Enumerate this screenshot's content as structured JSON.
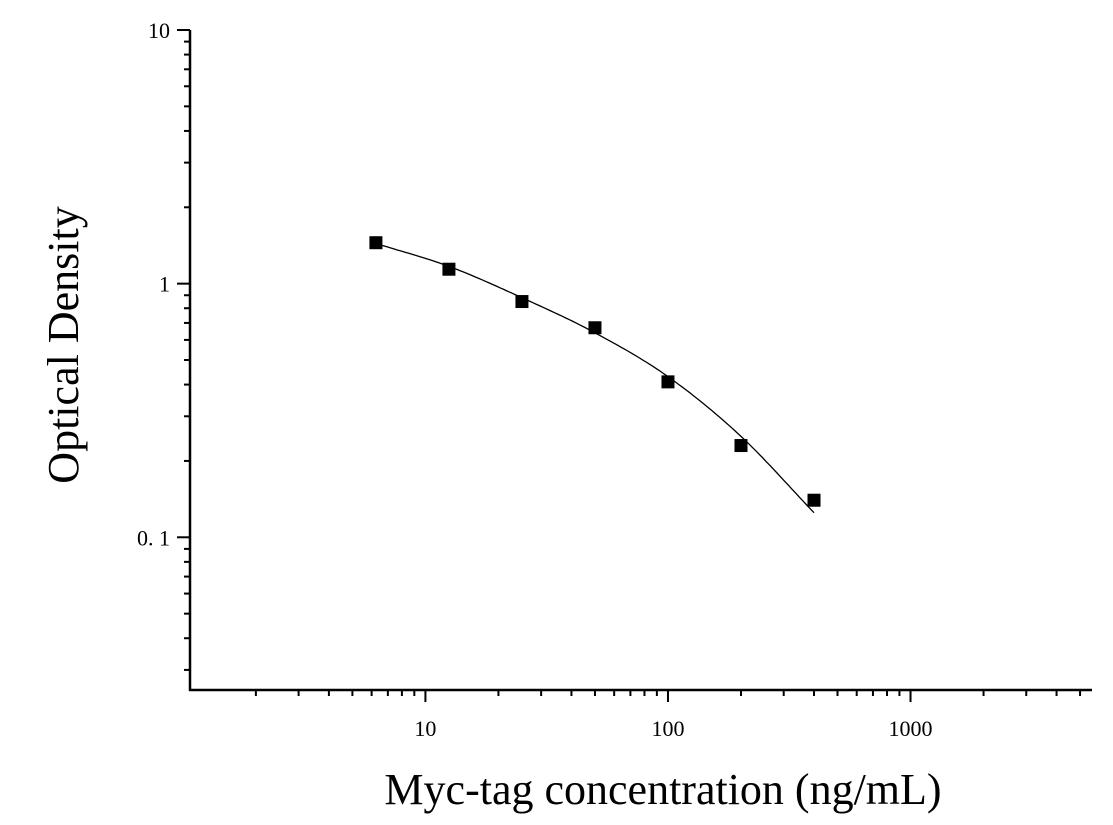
{
  "chart_data": {
    "type": "scatter",
    "xlabel": "Myc-tag concentration (ng/mL)",
    "ylabel": "Optical Density",
    "x_scale": "log",
    "y_scale": "log",
    "xlim": [
      1.07,
      5600
    ],
    "ylim": [
      0.025,
      10
    ],
    "x_ticks": [
      10,
      100,
      1000
    ],
    "x_tick_labels": [
      "10",
      "100",
      "1000"
    ],
    "y_ticks": [
      10,
      1,
      0.1
    ],
    "y_tick_labels": [
      "10",
      "1",
      "0. 1"
    ],
    "grid": false,
    "legend": "none",
    "series": [
      {
        "marker": "square",
        "color": "#000000",
        "x": [
          6.25,
          12.5,
          25,
          50,
          100,
          200,
          400
        ],
        "y": [
          1.45,
          1.14,
          0.85,
          0.67,
          0.41,
          0.23,
          0.14
        ]
      }
    ],
    "fit_curve": {
      "style": "line",
      "color": "#000000",
      "x": [
        6.25,
        12.5,
        25,
        50,
        100,
        200,
        400
      ],
      "y": [
        1.44,
        1.17,
        0.88,
        0.64,
        0.43,
        0.25,
        0.125
      ]
    }
  }
}
